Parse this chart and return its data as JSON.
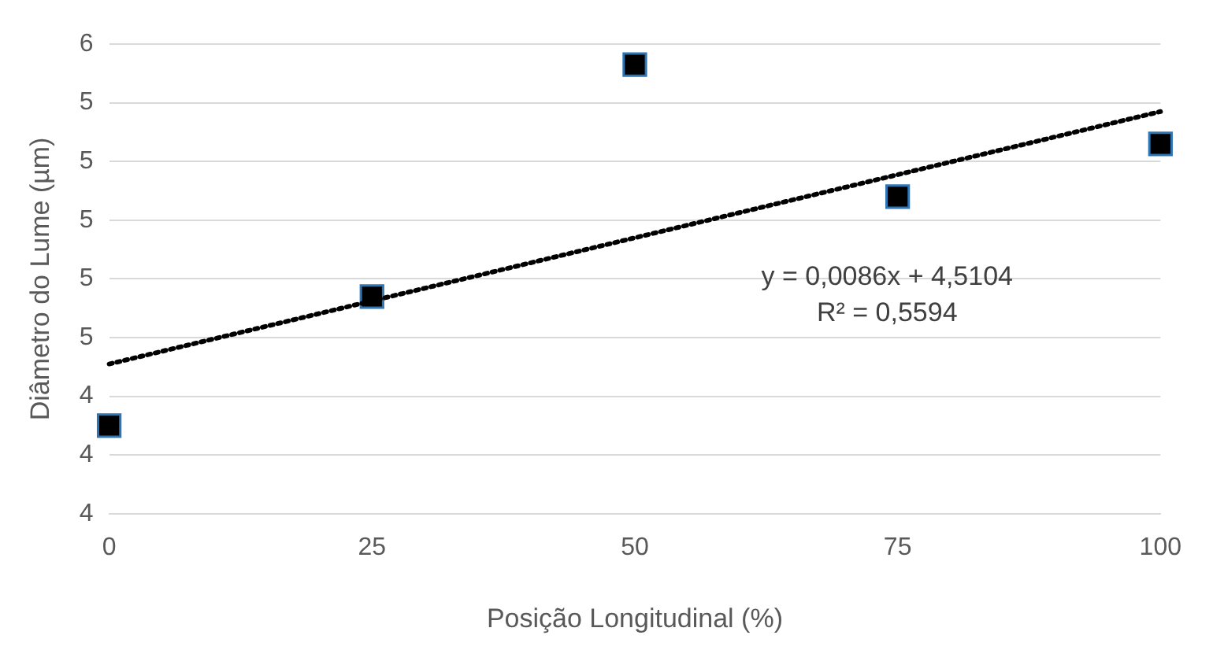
{
  "chart_data": {
    "type": "scatter",
    "xlabel": "Posição Longitudinal (%)",
    "ylabel": "Diâmetro do Lume (µm)",
    "x": [
      0,
      25,
      50,
      75,
      100
    ],
    "series": [
      {
        "type": "scatter",
        "color": "#000000",
        "marker": "square",
        "values": [
          4.3,
          4.74,
          5.53,
          5.08,
          5.26
        ]
      },
      {
        "type": "line",
        "color": "#000000",
        "line_style": "dotted",
        "marker": "none",
        "x": [
          0,
          100
        ],
        "values": [
          4.51,
          5.37
        ]
      }
    ],
    "xlim": [
      0,
      100
    ],
    "xticks": [
      0,
      25,
      50,
      75,
      100
    ],
    "ylim": [
      4.0,
      5.6
    ],
    "yticks": [
      {
        "value": 4.0,
        "label": "4"
      },
      {
        "value": 4.2,
        "label": "4"
      },
      {
        "value": 4.4,
        "label": "4"
      },
      {
        "value": 4.6,
        "label": "5"
      },
      {
        "value": 4.8,
        "label": "5"
      },
      {
        "value": 5.0,
        "label": "5"
      },
      {
        "value": 5.2,
        "label": "5"
      },
      {
        "value": 5.4,
        "label": "5"
      },
      {
        "value": 5.6,
        "label": "6"
      }
    ],
    "grid": "y",
    "legend": false,
    "annotations": [
      "y = 0,0086x + 4,5104",
      "R² = 0,5594"
    ]
  }
}
